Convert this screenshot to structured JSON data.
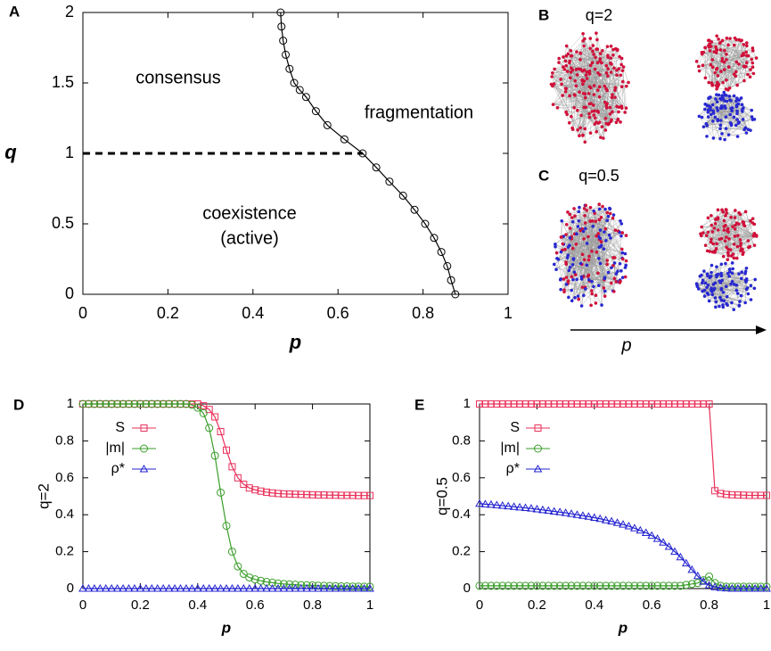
{
  "chart_data": [
    {
      "type": "line",
      "panel": "A",
      "xlabel": "p",
      "ylabel": "q",
      "xlim": [
        0,
        1
      ],
      "ylim": [
        0,
        2
      ],
      "xticks": [
        0,
        0.2,
        0.4,
        0.6,
        0.8,
        1
      ],
      "yticks": [
        0,
        0.5,
        1,
        1.5,
        2
      ],
      "annotations": [
        "consensus",
        "fragmentation",
        "coexistence",
        "(active)"
      ],
      "series": [
        {
          "color": "#000000",
          "marker": "circle",
          "x": [
            0.465,
            0.467,
            0.471,
            0.477,
            0.486,
            0.497,
            0.51,
            0.525,
            0.548,
            0.575,
            0.615,
            0.658,
            0.69,
            0.721,
            0.753,
            0.78,
            0.805,
            0.826,
            0.843,
            0.857,
            0.866,
            0.876
          ],
          "values": [
            2,
            1.9,
            1.8,
            1.7,
            1.6,
            1.5,
            1.45,
            1.4,
            1.3,
            1.2,
            1.1,
            1,
            0.9,
            0.8,
            0.7,
            0.6,
            0.5,
            0.4,
            0.3,
            0.2,
            0.1,
            0
          ]
        },
        {
          "color": "#000000",
          "dash": true,
          "x": [
            0,
            0.658
          ],
          "values": [
            1,
            1
          ]
        }
      ]
    },
    {
      "type": "line",
      "panel": "D",
      "xlabel": "p",
      "ylabel": "q=2",
      "xlim": [
        0,
        1
      ],
      "ylim": [
        0,
        1
      ],
      "xticks": [
        0,
        0.2,
        0.4,
        0.6,
        0.8,
        1
      ],
      "yticks": [
        0,
        0.2,
        0.4,
        0.6,
        0.8,
        1
      ],
      "legend": "upper left",
      "x": [
        0,
        0.02,
        0.04,
        0.06,
        0.08,
        0.1,
        0.12,
        0.14,
        0.16,
        0.18,
        0.2,
        0.22,
        0.24,
        0.26,
        0.28,
        0.3,
        0.32,
        0.34,
        0.36,
        0.38,
        0.4,
        0.42,
        0.44,
        0.46,
        0.48,
        0.5,
        0.52,
        0.54,
        0.56,
        0.58,
        0.6,
        0.62,
        0.64,
        0.66,
        0.68,
        0.7,
        0.72,
        0.74,
        0.76,
        0.78,
        0.8,
        0.82,
        0.84,
        0.86,
        0.88,
        0.9,
        0.92,
        0.94,
        0.96,
        0.98,
        1
      ],
      "series": [
        {
          "name": "S",
          "color": "#e8305a",
          "marker": "square",
          "values": [
            1,
            1,
            1,
            1,
            1,
            1,
            1,
            1,
            1,
            1,
            1,
            1,
            1,
            1,
            1,
            1,
            1,
            1,
            1,
            1,
            1,
            0.99,
            0.97,
            0.93,
            0.85,
            0.75,
            0.66,
            0.6,
            0.565,
            0.545,
            0.535,
            0.528,
            0.522,
            0.518,
            0.515,
            0.513,
            0.512,
            0.511,
            0.51,
            0.509,
            0.508,
            0.507,
            0.507,
            0.506,
            0.506,
            0.505,
            0.505,
            0.505,
            0.504,
            0.504,
            0.504
          ]
        },
        {
          "name": "|m|",
          "color": "#3a9e2a",
          "marker": "circle",
          "values": [
            1,
            1,
            1,
            1,
            1,
            1,
            1,
            1,
            1,
            1,
            1,
            1,
            1,
            1,
            1,
            1,
            1,
            1,
            1,
            0.995,
            0.98,
            0.95,
            0.87,
            0.72,
            0.52,
            0.34,
            0.2,
            0.12,
            0.08,
            0.06,
            0.05,
            0.042,
            0.036,
            0.032,
            0.028,
            0.025,
            0.023,
            0.021,
            0.019,
            0.018,
            0.017,
            0.016,
            0.015,
            0.014,
            0.013,
            0.012,
            0.012,
            0.011,
            0.011,
            0.01,
            0.01
          ]
        },
        {
          "name": "ρ*",
          "color": "#2323d0",
          "marker": "triangle",
          "values": [
            0,
            0,
            0,
            0,
            0,
            0,
            0,
            0,
            0,
            0,
            0,
            0,
            0,
            0,
            0,
            0,
            0,
            0,
            0,
            0,
            0,
            0,
            0,
            0,
            0,
            0,
            0,
            0,
            0,
            0,
            0,
            0,
            0,
            0,
            0,
            0,
            0,
            0,
            0,
            0,
            0,
            0,
            0,
            0,
            0,
            0,
            0,
            0,
            0,
            0,
            0
          ]
        }
      ]
    },
    {
      "type": "line",
      "panel": "E",
      "xlabel": "p",
      "ylabel": "q=0.5",
      "xlim": [
        0,
        1
      ],
      "ylim": [
        0,
        1
      ],
      "xticks": [
        0,
        0.2,
        0.4,
        0.6,
        0.8,
        1
      ],
      "yticks": [
        0,
        0.2,
        0.4,
        0.6,
        0.8,
        1
      ],
      "legend": "upper left",
      "x": [
        0,
        0.02,
        0.04,
        0.06,
        0.08,
        0.1,
        0.12,
        0.14,
        0.16,
        0.18,
        0.2,
        0.22,
        0.24,
        0.26,
        0.28,
        0.3,
        0.32,
        0.34,
        0.36,
        0.38,
        0.4,
        0.42,
        0.44,
        0.46,
        0.48,
        0.5,
        0.52,
        0.54,
        0.56,
        0.58,
        0.6,
        0.62,
        0.64,
        0.66,
        0.68,
        0.7,
        0.72,
        0.74,
        0.76,
        0.78,
        0.8,
        0.82,
        0.84,
        0.86,
        0.88,
        0.9,
        0.92,
        0.94,
        0.96,
        0.98,
        1
      ],
      "series": [
        {
          "name": "S",
          "color": "#e8305a",
          "marker": "square",
          "values": [
            1,
            1,
            1,
            1,
            1,
            1,
            1,
            1,
            1,
            1,
            1,
            1,
            1,
            1,
            1,
            1,
            1,
            1,
            1,
            1,
            1,
            1,
            1,
            1,
            1,
            1,
            1,
            1,
            1,
            1,
            1,
            1,
            1,
            1,
            1,
            1,
            1,
            1,
            1,
            1,
            1,
            0.53,
            0.515,
            0.51,
            0.508,
            0.507,
            0.506,
            0.505,
            0.505,
            0.505,
            0.505
          ]
        },
        {
          "name": "|m|",
          "color": "#3a9e2a",
          "marker": "circle",
          "values": [
            0.015,
            0.015,
            0.015,
            0.015,
            0.015,
            0.015,
            0.015,
            0.015,
            0.015,
            0.015,
            0.015,
            0.015,
            0.015,
            0.015,
            0.015,
            0.015,
            0.015,
            0.015,
            0.015,
            0.015,
            0.015,
            0.015,
            0.015,
            0.015,
            0.015,
            0.015,
            0.015,
            0.015,
            0.015,
            0.015,
            0.015,
            0.015,
            0.015,
            0.015,
            0.015,
            0.015,
            0.02,
            0.025,
            0.03,
            0.045,
            0.065,
            0.03,
            0.015,
            0.01,
            0.01,
            0.01,
            0.01,
            0.01,
            0.01,
            0.01,
            0.01
          ]
        },
        {
          "name": "ρ*",
          "color": "#2323d0",
          "marker": "triangle",
          "values": [
            0.46,
            0.457,
            0.455,
            0.452,
            0.449,
            0.446,
            0.443,
            0.44,
            0.437,
            0.434,
            0.43,
            0.426,
            0.422,
            0.418,
            0.414,
            0.41,
            0.405,
            0.4,
            0.395,
            0.39,
            0.384,
            0.378,
            0.371,
            0.364,
            0.356,
            0.347,
            0.338,
            0.327,
            0.315,
            0.302,
            0.287,
            0.27,
            0.25,
            0.227,
            0.2,
            0.17,
            0.137,
            0.102,
            0.068,
            0.038,
            0.018,
            0.008,
            0.004,
            0.002,
            0,
            0,
            0,
            0,
            0,
            0,
            0
          ]
        }
      ]
    }
  ],
  "networks": {
    "panels": [
      {
        "label": "B",
        "title": "q=2"
      },
      {
        "label": "C",
        "title": "q=0.5"
      }
    ],
    "xlabel": "p"
  }
}
